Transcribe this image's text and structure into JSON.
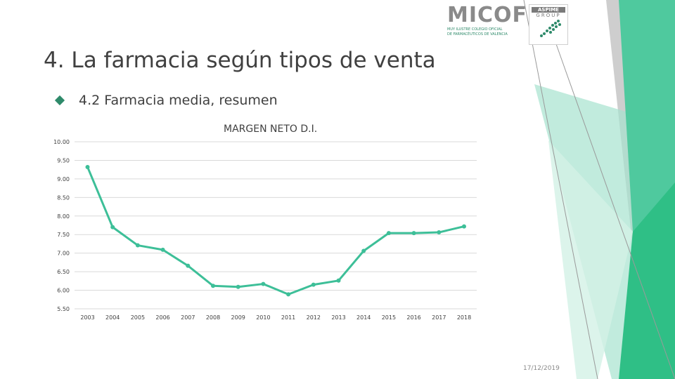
{
  "slide": {
    "title": "4. La farmacia según tipos de venta",
    "bullet": "4.2 Farmacia media, resumen",
    "date": "17/12/2019"
  },
  "logos": {
    "micof": "MICOF",
    "micof_subtitle_1": "MUY ILUSTRE COLEGIO OFICIAL",
    "micof_subtitle_2": "DE FARMACÉUTICOS DE VALENCIA",
    "aspime": "ASPIME",
    "aspime_group": "GROUP"
  },
  "colors": {
    "line": "#3dbf98",
    "accent": "#2e8a6a",
    "green_light": "#a7e3cf",
    "green_mid": "#4fc99e",
    "green_dark": "#2fbf86",
    "gray": "#c8c8c8"
  },
  "chart_data": {
    "type": "line",
    "title": "MARGEN NETO D.I.",
    "categories": [
      "2003",
      "2004",
      "2005",
      "2006",
      "2007",
      "2008",
      "2009",
      "2010",
      "2011",
      "2012",
      "2013",
      "2014",
      "2015",
      "2016",
      "2017",
      "2018"
    ],
    "series": [
      {
        "values": [
          9.32,
          7.7,
          7.21,
          7.09,
          6.66,
          6.12,
          6.09,
          6.17,
          5.89,
          6.15,
          6.26,
          7.06,
          7.54,
          7.54,
          7.56,
          7.72
        ]
      }
    ],
    "ylim": [
      5.5,
      10.0
    ],
    "yticks": [
      "10.00",
      "9.50",
      "9.00",
      "8.50",
      "8.00",
      "7.50",
      "7.00",
      "6.50",
      "6.00",
      "5.50"
    ],
    "ytick_values": [
      10.0,
      9.5,
      9.0,
      8.5,
      8.0,
      7.5,
      7.0,
      6.5,
      6.0,
      5.5
    ],
    "grid": true,
    "legend": "none"
  }
}
